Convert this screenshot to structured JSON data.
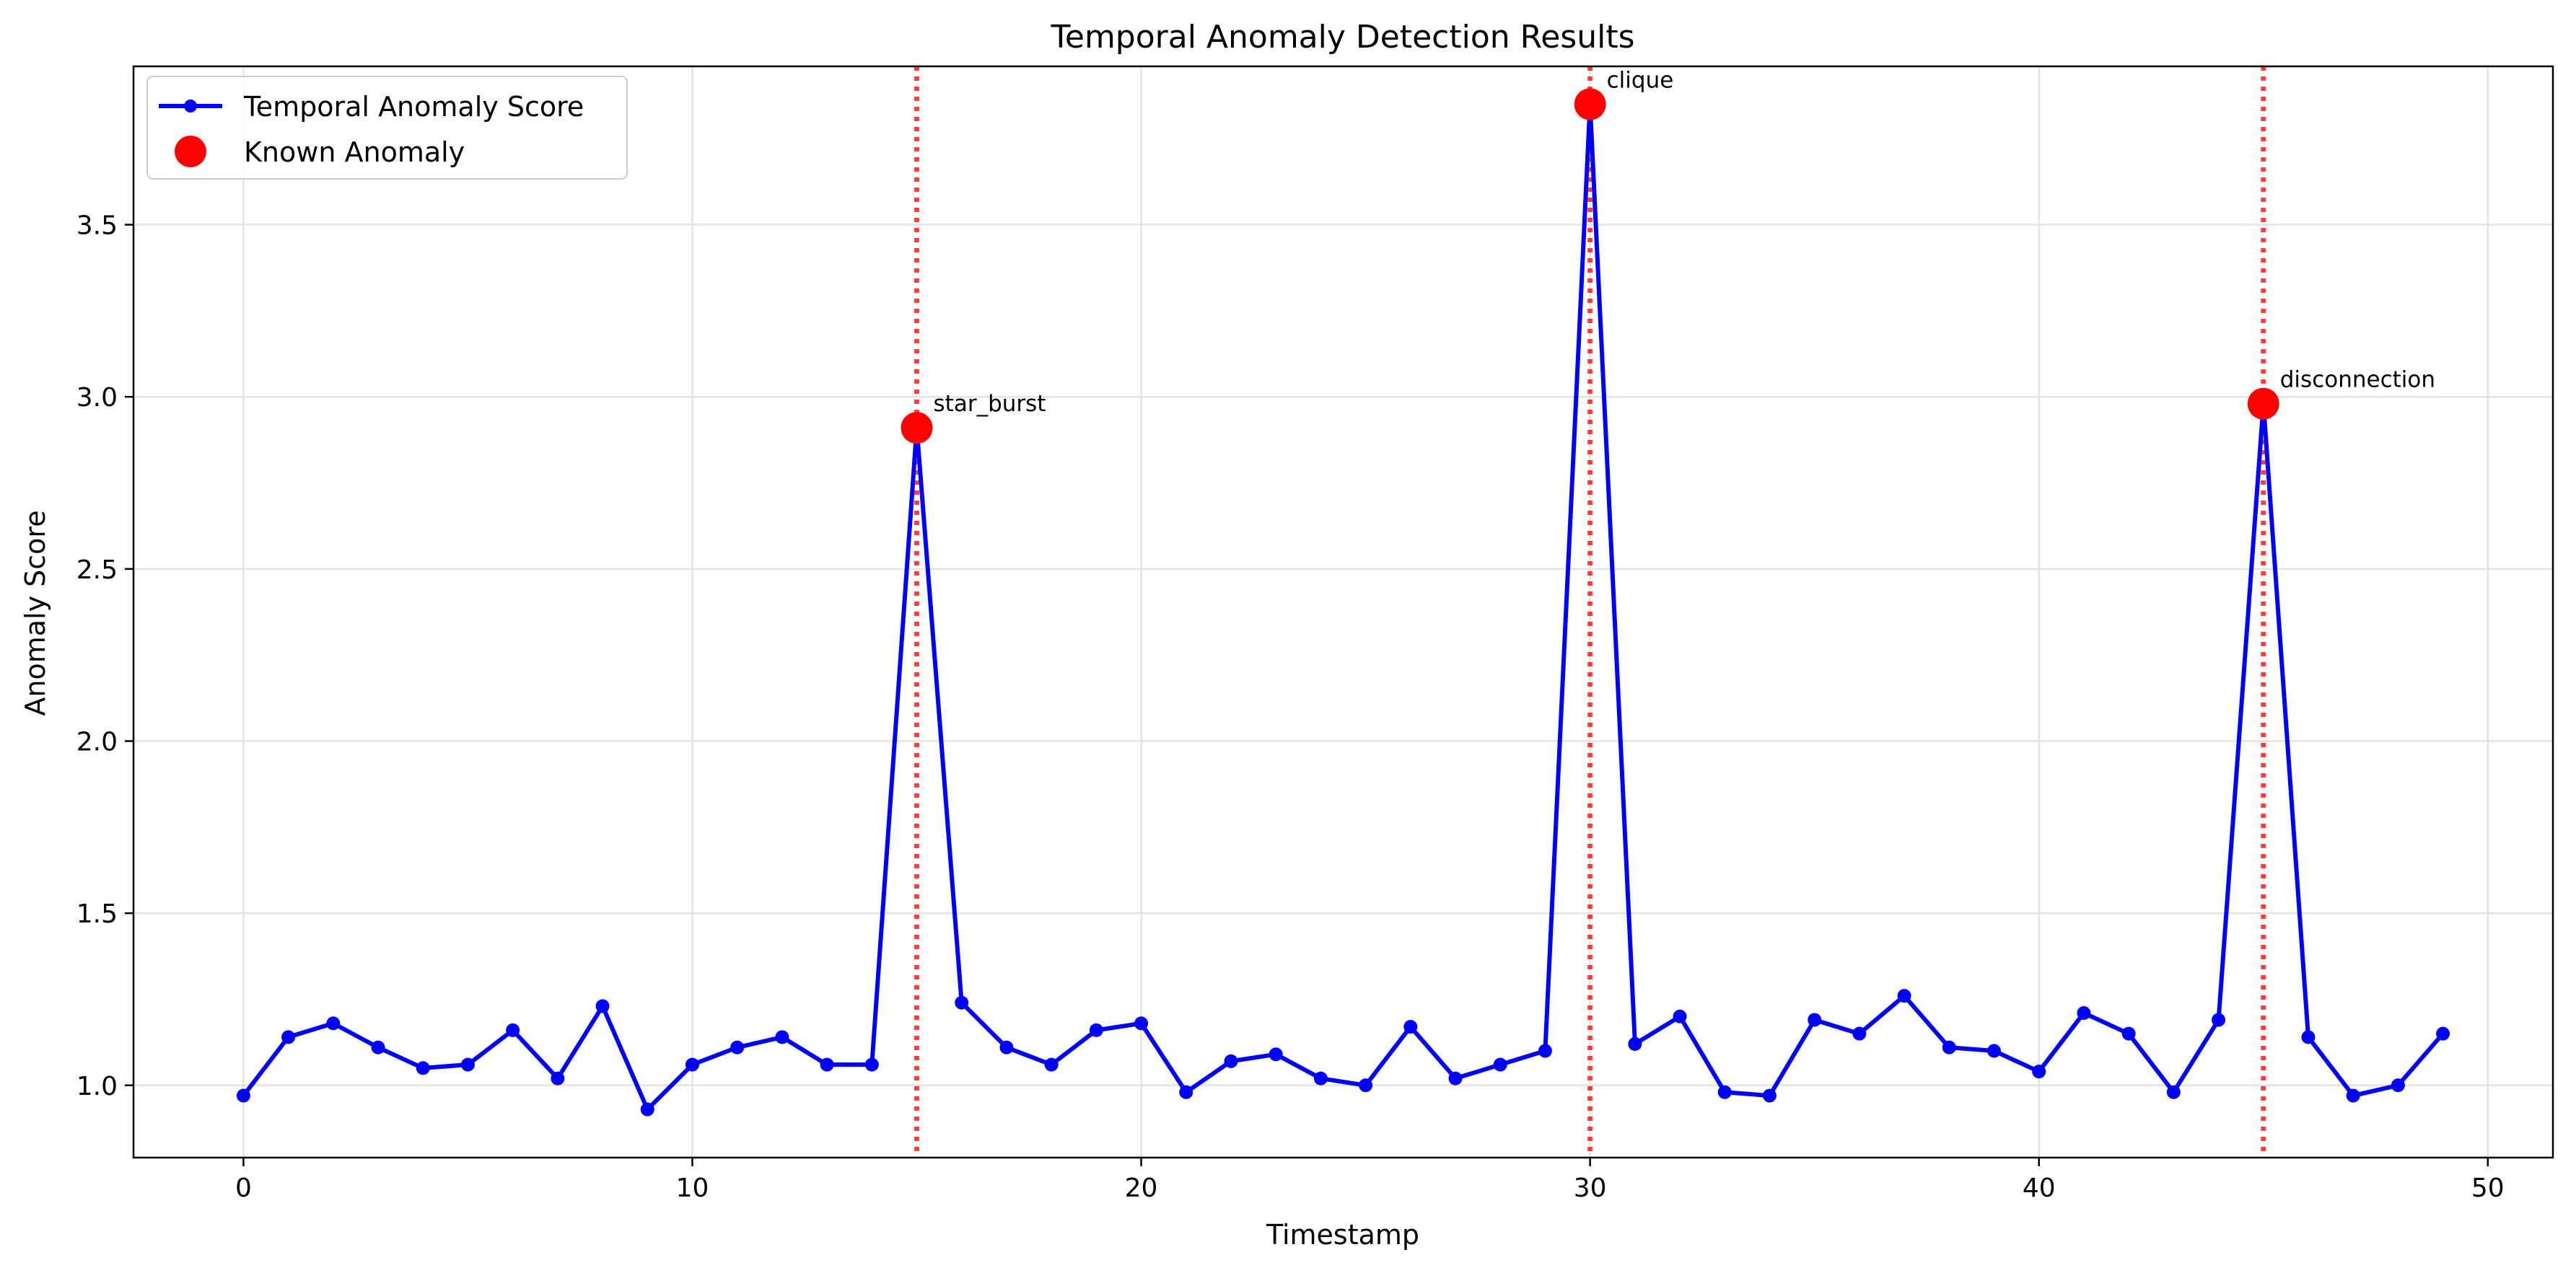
{
  "chart_data": {
    "type": "line",
    "title": "Temporal Anomaly Detection Results",
    "xlabel": "Timestamp",
    "ylabel": "Anomaly Score",
    "xlim": [
      -2.45,
      51.45
    ],
    "ylim": [
      0.79,
      3.96
    ],
    "x_ticks": [
      0,
      10,
      20,
      30,
      40,
      50
    ],
    "x_tick_labels": [
      "0",
      "10",
      "20",
      "30",
      "40",
      "50"
    ],
    "y_ticks": [
      1.0,
      1.5,
      2.0,
      2.5,
      3.0,
      3.5
    ],
    "y_tick_labels": [
      "1.0",
      "1.5",
      "2.0",
      "2.5",
      "3.0",
      "3.5"
    ],
    "grid": true,
    "legend_position": "top-left",
    "series": [
      {
        "name": "Temporal Anomaly Score",
        "color": "#0000ff",
        "marker": "circle",
        "x": [
          0,
          1,
          2,
          3,
          4,
          5,
          6,
          7,
          8,
          9,
          10,
          11,
          12,
          13,
          14,
          15,
          16,
          17,
          18,
          19,
          20,
          21,
          22,
          23,
          24,
          25,
          26,
          27,
          28,
          29,
          30,
          31,
          32,
          33,
          34,
          35,
          36,
          37,
          38,
          39,
          40,
          41,
          42,
          43,
          44,
          45,
          46,
          47,
          48,
          49
        ],
        "values": [
          0.97,
          1.14,
          1.18,
          1.11,
          1.05,
          1.06,
          1.16,
          1.02,
          1.23,
          0.93,
          1.06,
          1.11,
          1.14,
          1.06,
          1.06,
          2.91,
          1.24,
          1.11,
          1.06,
          1.16,
          1.18,
          0.98,
          1.07,
          1.09,
          1.02,
          1.0,
          1.17,
          1.02,
          1.06,
          1.1,
          3.85,
          1.12,
          1.2,
          0.98,
          0.97,
          1.19,
          1.15,
          1.26,
          1.11,
          1.1,
          1.04,
          1.21,
          1.15,
          0.98,
          1.19,
          2.98,
          1.14,
          0.97,
          1.0,
          1.15
        ]
      },
      {
        "name": "Known Anomaly",
        "color": "#ff0000",
        "marker": "large-circle",
        "x": [
          15,
          30,
          45
        ],
        "values": [
          2.91,
          3.85,
          2.98
        ],
        "labels": [
          "star_burst",
          "clique",
          "disconnection"
        ]
      }
    ],
    "vlines": {
      "x": [
        15,
        30,
        45
      ],
      "color": "#ff0000",
      "style": "dotted"
    }
  }
}
